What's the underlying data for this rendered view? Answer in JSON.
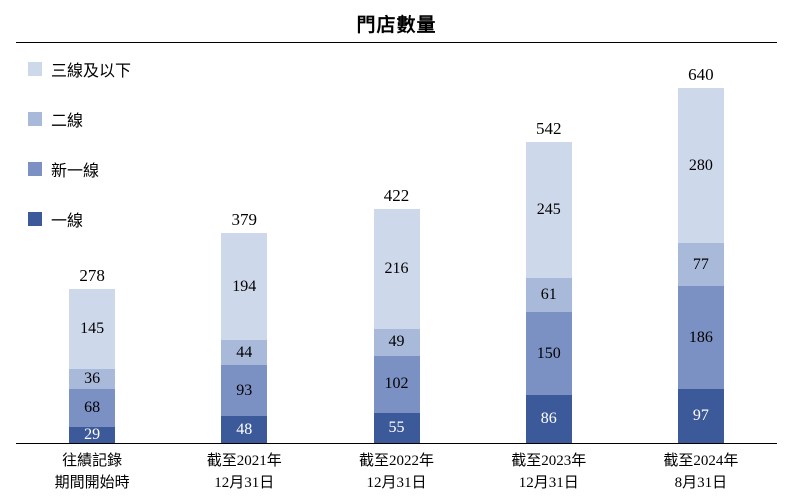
{
  "chart_data": {
    "type": "bar",
    "stacked": true,
    "title": "門店數量",
    "legend_position": "top-left",
    "grid": false,
    "ylim": [
      0,
      640
    ],
    "categories": [
      [
        "往績記錄",
        "期間開始時"
      ],
      [
        "截至2021年",
        "12月31日"
      ],
      [
        "截至2022年",
        "12月31日"
      ],
      [
        "截至2023年",
        "12月31日"
      ],
      [
        "截至2024年",
        "8月31日"
      ]
    ],
    "series": [
      {
        "name": "三線及以下",
        "color": "#cdd8eb",
        "text_color": "#000000",
        "values": [
          145,
          194,
          216,
          245,
          280
        ]
      },
      {
        "name": "二線",
        "color": "#a9b9da",
        "text_color": "#000000",
        "values": [
          36,
          44,
          49,
          61,
          77
        ]
      },
      {
        "name": "新一線",
        "color": "#7b90c3",
        "text_color": "#000000",
        "values": [
          68,
          93,
          102,
          150,
          186
        ]
      },
      {
        "name": "一線",
        "color": "#3c5a99",
        "text_color": "#ffffff",
        "values": [
          29,
          48,
          55,
          86,
          97
        ]
      }
    ],
    "totals": [
      278,
      379,
      422,
      542,
      640
    ]
  }
}
